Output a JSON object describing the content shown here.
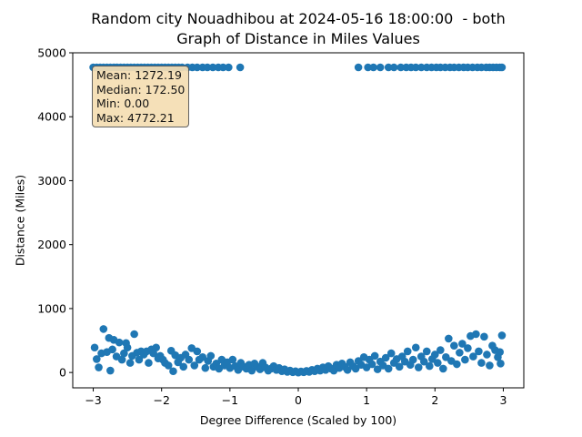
{
  "title": {
    "line1": "Random city Nouadhibou at 2024-05-16 18:00:00  - both",
    "line2": "Graph of Distance in Miles Values"
  },
  "chart_data": {
    "type": "scatter",
    "title": "Random city Nouadhibou at 2024-05-16 18:00:00  - both Graph of Distance in Miles Values",
    "xlabel": "Degree Difference (Scaled by 100)",
    "ylabel": "Distance (Miles)",
    "xlim": [
      -3.3,
      3.3
    ],
    "ylim": [
      -240,
      5000
    ],
    "xticks": [
      -3,
      -2,
      -1,
      0,
      1,
      2,
      3
    ],
    "yticks": [
      0,
      1000,
      2000,
      3000,
      4000,
      5000
    ],
    "grid": false,
    "series": [
      {
        "color": "#1f77b4",
        "points": [
          [
            -3.0,
            4772
          ],
          [
            -2.95,
            4772
          ],
          [
            -2.9,
            4772
          ],
          [
            -2.85,
            4772
          ],
          [
            -2.8,
            4772
          ],
          [
            -2.75,
            4772
          ],
          [
            -2.7,
            4772
          ],
          [
            -2.65,
            4772
          ],
          [
            -2.6,
            4772
          ],
          [
            -2.55,
            4772
          ],
          [
            -2.5,
            4772
          ],
          [
            -2.45,
            4772
          ],
          [
            -2.4,
            4772
          ],
          [
            -2.35,
            4772
          ],
          [
            -2.3,
            4772
          ],
          [
            -2.25,
            4772
          ],
          [
            -2.2,
            4772
          ],
          [
            -2.15,
            4772
          ],
          [
            -2.1,
            4772
          ],
          [
            -2.05,
            4772
          ],
          [
            -2.0,
            4772
          ],
          [
            -1.95,
            4772
          ],
          [
            -1.9,
            4772
          ],
          [
            -1.85,
            4772
          ],
          [
            -1.8,
            4772
          ],
          [
            -1.75,
            4772
          ],
          [
            -1.7,
            4772
          ],
          [
            -1.62,
            4772
          ],
          [
            -1.55,
            4772
          ],
          [
            -1.48,
            4772
          ],
          [
            -1.4,
            4772
          ],
          [
            -1.33,
            4772
          ],
          [
            -1.25,
            4772
          ],
          [
            -1.17,
            4772
          ],
          [
            -1.1,
            4772
          ],
          [
            -1.02,
            4772
          ],
          [
            -0.85,
            4772
          ],
          [
            0.88,
            4772
          ],
          [
            1.02,
            4772
          ],
          [
            1.1,
            4772
          ],
          [
            1.2,
            4772
          ],
          [
            1.32,
            4772
          ],
          [
            1.4,
            4772
          ],
          [
            1.5,
            4772
          ],
          [
            1.58,
            4772
          ],
          [
            1.65,
            4772
          ],
          [
            1.72,
            4772
          ],
          [
            1.8,
            4772
          ],
          [
            1.88,
            4772
          ],
          [
            1.95,
            4772
          ],
          [
            2.02,
            4772
          ],
          [
            2.08,
            4772
          ],
          [
            2.15,
            4772
          ],
          [
            2.22,
            4772
          ],
          [
            2.28,
            4772
          ],
          [
            2.35,
            4772
          ],
          [
            2.42,
            4772
          ],
          [
            2.48,
            4772
          ],
          [
            2.55,
            4772
          ],
          [
            2.62,
            4772
          ],
          [
            2.68,
            4772
          ],
          [
            2.75,
            4772
          ],
          [
            2.8,
            4772
          ],
          [
            2.85,
            4772
          ],
          [
            2.9,
            4772
          ],
          [
            2.95,
            4772
          ],
          [
            2.98,
            4772
          ],
          [
            -2.98,
            390
          ],
          [
            -2.95,
            210
          ],
          [
            -2.92,
            80
          ],
          [
            -2.88,
            300
          ],
          [
            -2.85,
            680
          ],
          [
            -2.8,
            320
          ],
          [
            -2.77,
            540
          ],
          [
            -2.75,
            30
          ],
          [
            -2.72,
            360
          ],
          [
            -2.7,
            510
          ],
          [
            -2.66,
            250
          ],
          [
            -2.62,
            470
          ],
          [
            -2.58,
            200
          ],
          [
            -2.55,
            300
          ],
          [
            -2.52,
            460
          ],
          [
            -2.5,
            390
          ],
          [
            -2.46,
            150
          ],
          [
            -2.43,
            260
          ],
          [
            -2.4,
            600
          ],
          [
            -2.36,
            310
          ],
          [
            -2.33,
            200
          ],
          [
            -2.3,
            330
          ],
          [
            -2.26,
            280
          ],
          [
            -2.22,
            330
          ],
          [
            -2.19,
            150
          ],
          [
            -2.15,
            360
          ],
          [
            -2.12,
            300
          ],
          [
            -2.08,
            390
          ],
          [
            -2.05,
            220
          ],
          [
            -2.02,
            260
          ],
          [
            -1.98,
            200
          ],
          [
            -1.95,
            150
          ],
          [
            -1.9,
            110
          ],
          [
            -1.86,
            340
          ],
          [
            -1.83,
            20
          ],
          [
            -1.8,
            270
          ],
          [
            -1.76,
            160
          ],
          [
            -1.72,
            230
          ],
          [
            -1.68,
            90
          ],
          [
            -1.65,
            280
          ],
          [
            -1.6,
            200
          ],
          [
            -1.56,
            380
          ],
          [
            -1.52,
            110
          ],
          [
            -1.48,
            330
          ],
          [
            -1.45,
            200
          ],
          [
            -1.4,
            240
          ],
          [
            -1.36,
            70
          ],
          [
            -1.32,
            180
          ],
          [
            -1.28,
            260
          ],
          [
            -1.24,
            90
          ],
          [
            -1.2,
            140
          ],
          [
            -1.16,
            60
          ],
          [
            -1.12,
            200
          ],
          [
            -1.08,
            110
          ],
          [
            -1.04,
            160
          ],
          [
            -1.0,
            70
          ],
          [
            -0.96,
            200
          ],
          [
            -0.92,
            100
          ],
          [
            -0.88,
            40
          ],
          [
            -0.84,
            150
          ],
          [
            -0.8,
            90
          ],
          [
            -0.76,
            60
          ],
          [
            -0.72,
            120
          ],
          [
            -0.68,
            30
          ],
          [
            -0.64,
            140
          ],
          [
            -0.6,
            90
          ],
          [
            -0.56,
            50
          ],
          [
            -0.52,
            150
          ],
          [
            -0.48,
            80
          ],
          [
            -0.44,
            30
          ],
          [
            -0.4,
            60
          ],
          [
            -0.36,
            100
          ],
          [
            -0.32,
            40
          ],
          [
            -0.28,
            70
          ],
          [
            -0.24,
            20
          ],
          [
            -0.2,
            50
          ],
          [
            -0.16,
            10
          ],
          [
            -0.12,
            30
          ],
          [
            -0.08,
            5
          ],
          [
            -0.04,
            20
          ],
          [
            0.0,
            0
          ],
          [
            0.04,
            15
          ],
          [
            0.08,
            5
          ],
          [
            0.12,
            25
          ],
          [
            0.16,
            10
          ],
          [
            0.2,
            40
          ],
          [
            0.24,
            20
          ],
          [
            0.28,
            60
          ],
          [
            0.32,
            30
          ],
          [
            0.36,
            80
          ],
          [
            0.4,
            40
          ],
          [
            0.44,
            100
          ],
          [
            0.48,
            60
          ],
          [
            0.52,
            30
          ],
          [
            0.56,
            120
          ],
          [
            0.6,
            70
          ],
          [
            0.64,
            140
          ],
          [
            0.68,
            90
          ],
          [
            0.72,
            40
          ],
          [
            0.76,
            160
          ],
          [
            0.8,
            100
          ],
          [
            0.84,
            60
          ],
          [
            0.88,
            180
          ],
          [
            0.92,
            120
          ],
          [
            0.96,
            240
          ],
          [
            1.0,
            80
          ],
          [
            1.04,
            200
          ],
          [
            1.08,
            130
          ],
          [
            1.12,
            260
          ],
          [
            1.16,
            50
          ],
          [
            1.2,
            170
          ],
          [
            1.24,
            110
          ],
          [
            1.28,
            230
          ],
          [
            1.32,
            60
          ],
          [
            1.36,
            300
          ],
          [
            1.4,
            150
          ],
          [
            1.44,
            210
          ],
          [
            1.48,
            90
          ],
          [
            1.52,
            250
          ],
          [
            1.56,
            170
          ],
          [
            1.6,
            330
          ],
          [
            1.64,
            120
          ],
          [
            1.68,
            200
          ],
          [
            1.72,
            390
          ],
          [
            1.76,
            80
          ],
          [
            1.8,
            250
          ],
          [
            1.84,
            170
          ],
          [
            1.88,
            330
          ],
          [
            1.92,
            100
          ],
          [
            1.96,
            210
          ],
          [
            2.0,
            280
          ],
          [
            2.04,
            150
          ],
          [
            2.08,
            350
          ],
          [
            2.12,
            60
          ],
          [
            2.16,
            240
          ],
          [
            2.2,
            530
          ],
          [
            2.24,
            180
          ],
          [
            2.28,
            420
          ],
          [
            2.32,
            130
          ],
          [
            2.36,
            310
          ],
          [
            2.4,
            450
          ],
          [
            2.44,
            200
          ],
          [
            2.48,
            380
          ],
          [
            2.52,
            570
          ],
          [
            2.56,
            250
          ],
          [
            2.6,
            600
          ],
          [
            2.64,
            330
          ],
          [
            2.68,
            150
          ],
          [
            2.72,
            560
          ],
          [
            2.76,
            280
          ],
          [
            2.8,
            110
          ],
          [
            2.84,
            420
          ],
          [
            2.88,
            350
          ],
          [
            2.92,
            240
          ],
          [
            2.96,
            140
          ],
          [
            2.98,
            580
          ],
          [
            2.95,
            320
          ]
        ]
      }
    ],
    "stats": [
      "Mean: 1272.19",
      "Median: 172.50",
      "Min: 0.00",
      "Max: 4772.21"
    ]
  }
}
